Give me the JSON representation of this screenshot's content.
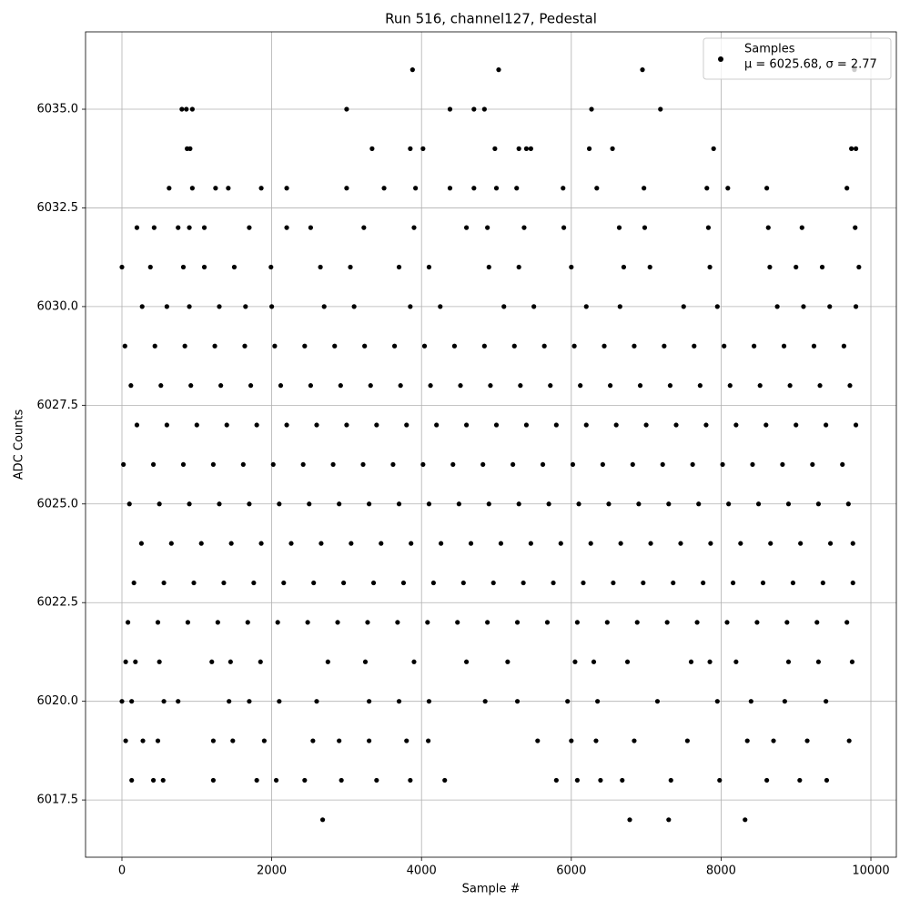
{
  "chart_data": {
    "type": "scatter",
    "title": "Run 516, channel127, Pedestal",
    "x_label": "Sample #",
    "y_label": "ADC Counts",
    "xlim": [
      -486,
      10340
    ],
    "ylim": [
      6016.05,
      6036.96
    ],
    "xticks": [
      0,
      2000,
      4000,
      6000,
      8000,
      10000
    ],
    "yticks": [
      6017.5,
      {
        "value": 6020,
        "label": "6020.0"
      },
      6022.5,
      {
        "value": 6025,
        "label": "6025.0"
      },
      6027.5,
      {
        "value": 6030,
        "label": "6030.0"
      },
      6032.5,
      {
        "value": 6035,
        "label": "6035.0"
      }
    ],
    "grid": true,
    "legend": "upper right",
    "legend_note": "μ = 6025.68, σ = 2.77",
    "series": [
      {
        "name": "Samples",
        "color": "#000000",
        "x": [
          2680,
          6780,
          7300,
          8320,
          3880,
          5030,
          6950,
          9780,
          800,
          860,
          940,
          3000,
          4380,
          4700,
          4840,
          6270,
          7190,
          870,
          910,
          3340,
          3850,
          4020,
          4980,
          5300,
          5400,
          5460,
          6240,
          6550,
          7900,
          9740,
          9800,
          630,
          940,
          1250,
          1420,
          1860,
          2200,
          3000,
          3500,
          3920,
          4380,
          4700,
          5000,
          5270,
          5890,
          6340,
          6970,
          7810,
          8090,
          8610,
          9680,
          200,
          430,
          750,
          900,
          1100,
          1700,
          2200,
          2520,
          3230,
          3900,
          4600,
          4880,
          5370,
          5900,
          6640,
          6980,
          7830,
          8630,
          9080,
          9790,
          0,
          380,
          820,
          1100,
          1500,
          1990,
          2650,
          3050,
          3700,
          4100,
          4900,
          5300,
          6000,
          6700,
          7050,
          7850,
          8650,
          9000,
          9350,
          9840,
          270,
          600,
          900,
          1300,
          1650,
          2000,
          2700,
          3100,
          3850,
          4250,
          5100,
          5500,
          6200,
          6650,
          7500,
          7950,
          8750,
          9100,
          9450,
          9800,
          40,
          440,
          840,
          1240,
          1640,
          2040,
          2440,
          2840,
          3240,
          3640,
          4040,
          4440,
          4840,
          5240,
          5640,
          6040,
          6440,
          6840,
          7240,
          7640,
          8040,
          8440,
          8840,
          9240,
          9640,
          120,
          520,
          920,
          1320,
          1720,
          2120,
          2520,
          2920,
          3320,
          3720,
          4120,
          4520,
          4920,
          5320,
          5720,
          6120,
          6520,
          6920,
          7320,
          7720,
          8120,
          8520,
          8920,
          9320,
          9720,
          200,
          600,
          1000,
          1400,
          1800,
          2200,
          2600,
          3000,
          3400,
          3800,
          4200,
          4600,
          5000,
          5400,
          5800,
          6200,
          6600,
          7000,
          7400,
          7800,
          8200,
          8600,
          9000,
          9400,
          9800,
          20,
          420,
          820,
          1220,
          1620,
          2020,
          2420,
          2820,
          3220,
          3620,
          4020,
          4420,
          4820,
          5220,
          5620,
          6020,
          6420,
          6820,
          7220,
          7620,
          8020,
          8420,
          8820,
          9220,
          9620,
          100,
          500,
          900,
          1300,
          1700,
          2100,
          2500,
          2900,
          3300,
          3700,
          4100,
          4500,
          4900,
          5300,
          5700,
          6100,
          6500,
          6900,
          7300,
          7700,
          8100,
          8500,
          8900,
          9300,
          9700,
          260,
          660,
          1060,
          1460,
          1860,
          2260,
          2660,
          3060,
          3460,
          3860,
          4260,
          4660,
          5060,
          5460,
          5860,
          6260,
          6660,
          7060,
          7460,
          7860,
          8260,
          8660,
          9060,
          9460,
          9760,
          160,
          560,
          960,
          1360,
          1760,
          2160,
          2560,
          2960,
          3360,
          3760,
          4160,
          4560,
          4960,
          5360,
          5760,
          6160,
          6560,
          6960,
          7360,
          7760,
          8160,
          8560,
          8960,
          9360,
          9760,
          80,
          480,
          880,
          1280,
          1680,
          2080,
          2480,
          2880,
          3280,
          3680,
          4080,
          4480,
          4880,
          5280,
          5680,
          6080,
          6480,
          6880,
          7280,
          7680,
          8080,
          8480,
          8880,
          9280,
          9680,
          50,
          180,
          500,
          1200,
          1450,
          1850,
          2750,
          3250,
          3900,
          4600,
          5150,
          6050,
          6300,
          6750,
          7600,
          7850,
          8200,
          8900,
          9300,
          9750,
          0,
          130,
          560,
          750,
          1430,
          1700,
          2100,
          2600,
          3300,
          3700,
          4100,
          4850,
          5280,
          5950,
          6350,
          7150,
          7950,
          8400,
          8850,
          9400,
          50,
          280,
          480,
          1220,
          1480,
          1900,
          2550,
          2900,
          3300,
          3800,
          4090,
          5550,
          6000,
          6330,
          6840,
          7550,
          8350,
          8700,
          9150,
          9710,
          130,
          420,
          550,
          1220,
          1800,
          2060,
          2440,
          2930,
          3400,
          3850,
          4310,
          5800,
          6080,
          6390,
          6680,
          7330,
          7980,
          8610,
          9050,
          9410
        ],
        "values": [
          6017,
          6017,
          6017,
          6017,
          6036,
          6036,
          6036,
          6036,
          6035,
          6035,
          6035,
          6035,
          6035,
          6035,
          6035,
          6035,
          6035,
          6034,
          6034,
          6034,
          6034,
          6034,
          6034,
          6034,
          6034,
          6034,
          6034,
          6034,
          6034,
          6034,
          6034,
          6033,
          6033,
          6033,
          6033,
          6033,
          6033,
          6033,
          6033,
          6033,
          6033,
          6033,
          6033,
          6033,
          6033,
          6033,
          6033,
          6033,
          6033,
          6033,
          6033,
          6032,
          6032,
          6032,
          6032,
          6032,
          6032,
          6032,
          6032,
          6032,
          6032,
          6032,
          6032,
          6032,
          6032,
          6032,
          6032,
          6032,
          6032,
          6032,
          6032,
          6031,
          6031,
          6031,
          6031,
          6031,
          6031,
          6031,
          6031,
          6031,
          6031,
          6031,
          6031,
          6031,
          6031,
          6031,
          6031,
          6031,
          6031,
          6031,
          6031,
          6030,
          6030,
          6030,
          6030,
          6030,
          6030,
          6030,
          6030,
          6030,
          6030,
          6030,
          6030,
          6030,
          6030,
          6030,
          6030,
          6030,
          6030,
          6030,
          6030,
          6029,
          6029,
          6029,
          6029,
          6029,
          6029,
          6029,
          6029,
          6029,
          6029,
          6029,
          6029,
          6029,
          6029,
          6029,
          6029,
          6029,
          6029,
          6029,
          6029,
          6029,
          6029,
          6029,
          6029,
          6029,
          6028,
          6028,
          6028,
          6028,
          6028,
          6028,
          6028,
          6028,
          6028,
          6028,
          6028,
          6028,
          6028,
          6028,
          6028,
          6028,
          6028,
          6028,
          6028,
          6028,
          6028,
          6028,
          6028,
          6028,
          6028,
          6027,
          6027,
          6027,
          6027,
          6027,
          6027,
          6027,
          6027,
          6027,
          6027,
          6027,
          6027,
          6027,
          6027,
          6027,
          6027,
          6027,
          6027,
          6027,
          6027,
          6027,
          6027,
          6027,
          6027,
          6027,
          6026,
          6026,
          6026,
          6026,
          6026,
          6026,
          6026,
          6026,
          6026,
          6026,
          6026,
          6026,
          6026,
          6026,
          6026,
          6026,
          6026,
          6026,
          6026,
          6026,
          6026,
          6026,
          6026,
          6026,
          6026,
          6025,
          6025,
          6025,
          6025,
          6025,
          6025,
          6025,
          6025,
          6025,
          6025,
          6025,
          6025,
          6025,
          6025,
          6025,
          6025,
          6025,
          6025,
          6025,
          6025,
          6025,
          6025,
          6025,
          6025,
          6025,
          6024,
          6024,
          6024,
          6024,
          6024,
          6024,
          6024,
          6024,
          6024,
          6024,
          6024,
          6024,
          6024,
          6024,
          6024,
          6024,
          6024,
          6024,
          6024,
          6024,
          6024,
          6024,
          6024,
          6024,
          6024,
          6023,
          6023,
          6023,
          6023,
          6023,
          6023,
          6023,
          6023,
          6023,
          6023,
          6023,
          6023,
          6023,
          6023,
          6023,
          6023,
          6023,
          6023,
          6023,
          6023,
          6023,
          6023,
          6023,
          6023,
          6023,
          6022,
          6022,
          6022,
          6022,
          6022,
          6022,
          6022,
          6022,
          6022,
          6022,
          6022,
          6022,
          6022,
          6022,
          6022,
          6022,
          6022,
          6022,
          6022,
          6022,
          6022,
          6022,
          6022,
          6022,
          6022,
          6021,
          6021,
          6021,
          6021,
          6021,
          6021,
          6021,
          6021,
          6021,
          6021,
          6021,
          6021,
          6021,
          6021,
          6021,
          6021,
          6021,
          6021,
          6021,
          6021,
          6020,
          6020,
          6020,
          6020,
          6020,
          6020,
          6020,
          6020,
          6020,
          6020,
          6020,
          6020,
          6020,
          6020,
          6020,
          6020,
          6020,
          6020,
          6020,
          6020,
          6019,
          6019,
          6019,
          6019,
          6019,
          6019,
          6019,
          6019,
          6019,
          6019,
          6019,
          6019,
          6019,
          6019,
          6019,
          6019,
          6019,
          6019,
          6019,
          6019,
          6018,
          6018,
          6018,
          6018,
          6018,
          6018,
          6018,
          6018,
          6018,
          6018,
          6018,
          6018,
          6018,
          6018,
          6018,
          6018,
          6018,
          6018,
          6018,
          6018
        ]
      }
    ]
  }
}
